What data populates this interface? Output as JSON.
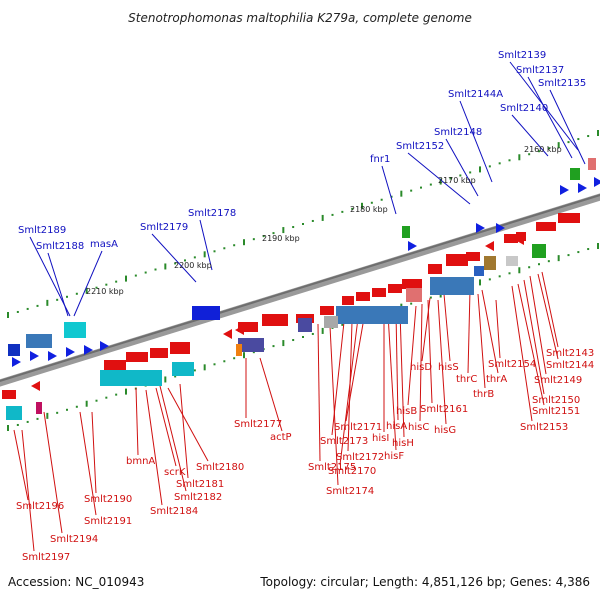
{
  "title": "Stenotrophomonas maltophilia K279a, complete genome",
  "footer": {
    "accession": "Accession: NC_010943",
    "summary": "Topology: circular; Length: 4,851,126 bp; Genes: 4,386"
  },
  "colors": {
    "upper_label": "#1010c0",
    "lower_label": "#d01010",
    "backbone": "#8a8a8a"
  },
  "ticks": [
    "2160 kbp",
    "2170 kbp",
    "2180 kbp",
    "2190 kbp",
    "2200 kbp",
    "2210 kbp"
  ],
  "upper_labels": [
    "Smlt2139",
    "Smlt2137",
    "Smlt2135",
    "Smlt2140",
    "Smlt2144A",
    "Smlt2148",
    "Smlt2152",
    "fnr1",
    "Smlt2178",
    "Smlt2179",
    "Smlt2189",
    "Smlt2188",
    "masA"
  ],
  "lower_labels": [
    "Smlt2143",
    "Smlt2144",
    "Smlt2149",
    "Smlt2150",
    "Smlt2151",
    "Smlt2153",
    "Smlt2154",
    "thrC",
    "thrA",
    "thrB",
    "hisD",
    "hisS",
    "Smlt2161",
    "hisB",
    "hisC",
    "hisG",
    "hisA",
    "hisI",
    "hisH",
    "hisF",
    "Smlt2171",
    "Smlt2173",
    "Smlt2172",
    "Smlt2170",
    "Smlt2175",
    "Smlt2174",
    "Smlt2177",
    "actP",
    "bmnA",
    "scrK",
    "Smlt2180",
    "Smlt2181",
    "Smlt2182",
    "Smlt2184",
    "Smlt2190",
    "Smlt2191",
    "Smlt2196",
    "Smlt2194",
    "Smlt2197"
  ]
}
